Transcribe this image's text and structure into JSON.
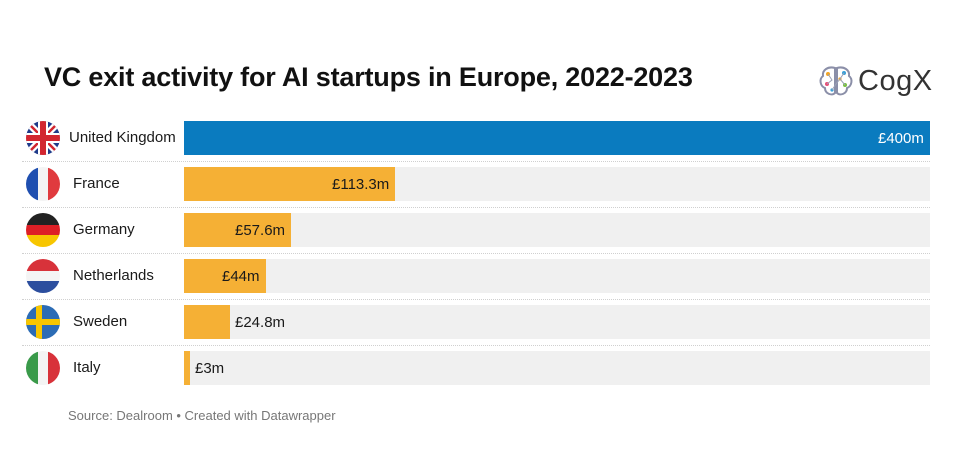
{
  "title": "VC exit activity for AI startups in Europe, 2022-2023",
  "logo": {
    "text": "CogX",
    "icon": "brain-icon"
  },
  "source": "Source: Dealroom • Created with Datawrapper",
  "colors": {
    "highlight": "#0a7bbf",
    "default": "#f5b035",
    "track": "#f0f0f0"
  },
  "chart_data": {
    "type": "bar",
    "orientation": "horizontal",
    "title": "VC exit activity for AI startups in Europe, 2022-2023",
    "categories": [
      "United Kingdom",
      "France",
      "Germany",
      "Netherlands",
      "Sweden",
      "Italy"
    ],
    "values": [
      400,
      113.3,
      57.6,
      44,
      24.8,
      3
    ],
    "labels": [
      "£400m",
      "£113.3m",
      "£57.6m",
      "£44m",
      "£24.8m",
      "£3m"
    ],
    "flags": [
      "uk-flag-icon",
      "france-flag-icon",
      "germany-flag-icon",
      "netherlands-flag-icon",
      "sweden-flag-icon",
      "italy-flag-icon"
    ],
    "xlim": [
      0,
      400
    ],
    "grid": false,
    "legend": "none"
  }
}
